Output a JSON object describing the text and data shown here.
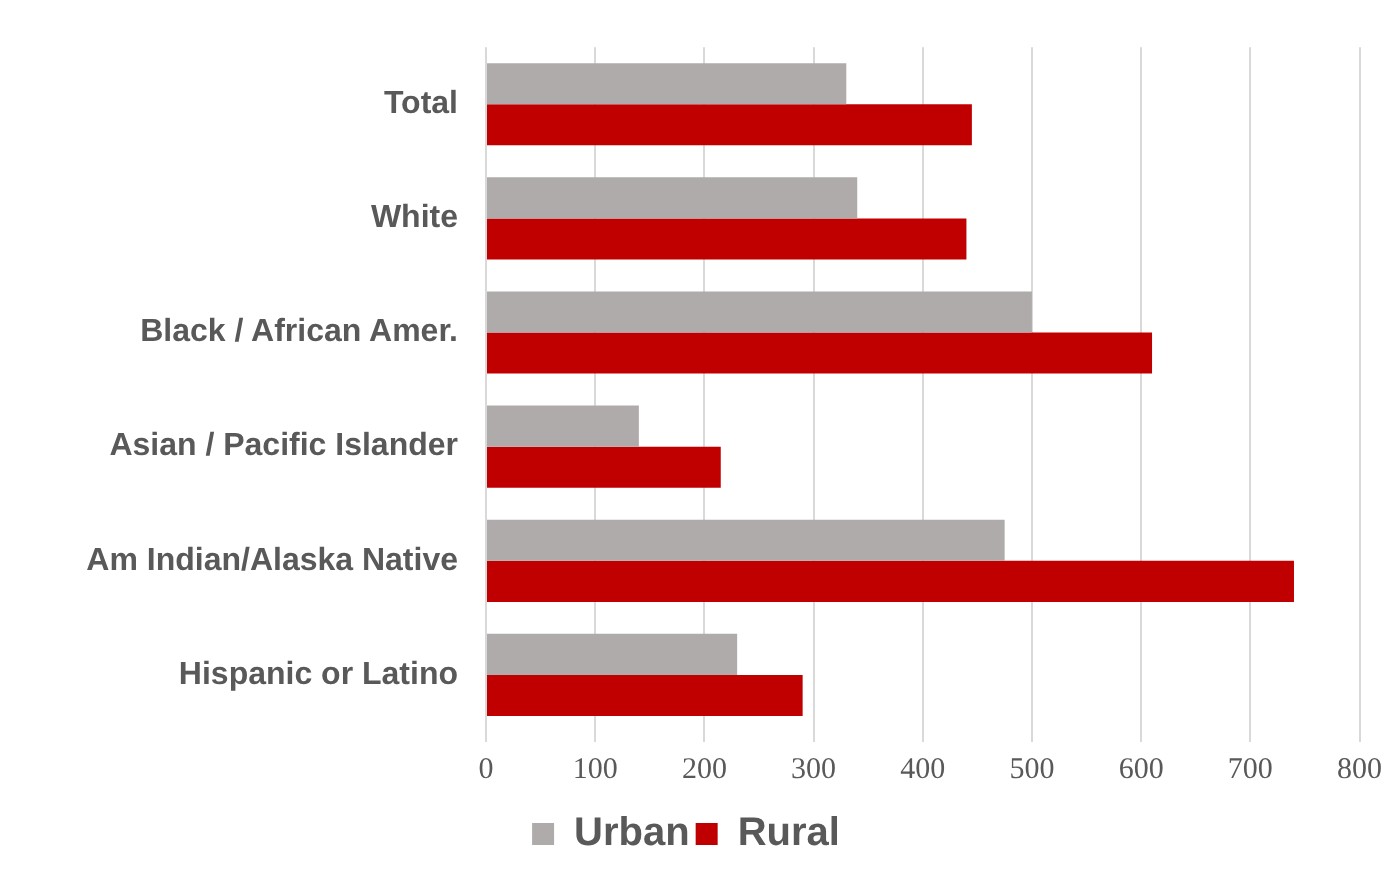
{
  "chart_data": {
    "type": "bar",
    "orientation": "horizontal",
    "categories": [
      "Total",
      "White",
      "Black / African Amer.",
      "Asian / Pacific Islander",
      "Am Indian/Alaska Native",
      "Hispanic or Latino"
    ],
    "series": [
      {
        "name": "Urban",
        "color": "#afabab",
        "values": [
          330,
          340,
          500,
          140,
          475,
          230
        ]
      },
      {
        "name": "Rural",
        "color": "#c00000",
        "values": [
          445,
          440,
          610,
          215,
          740,
          290
        ]
      }
    ],
    "xlim": [
      0,
      800
    ],
    "xticks": [
      0,
      100,
      200,
      300,
      400,
      500,
      600,
      700,
      800
    ],
    "grid": "x",
    "legend": "bottom"
  }
}
